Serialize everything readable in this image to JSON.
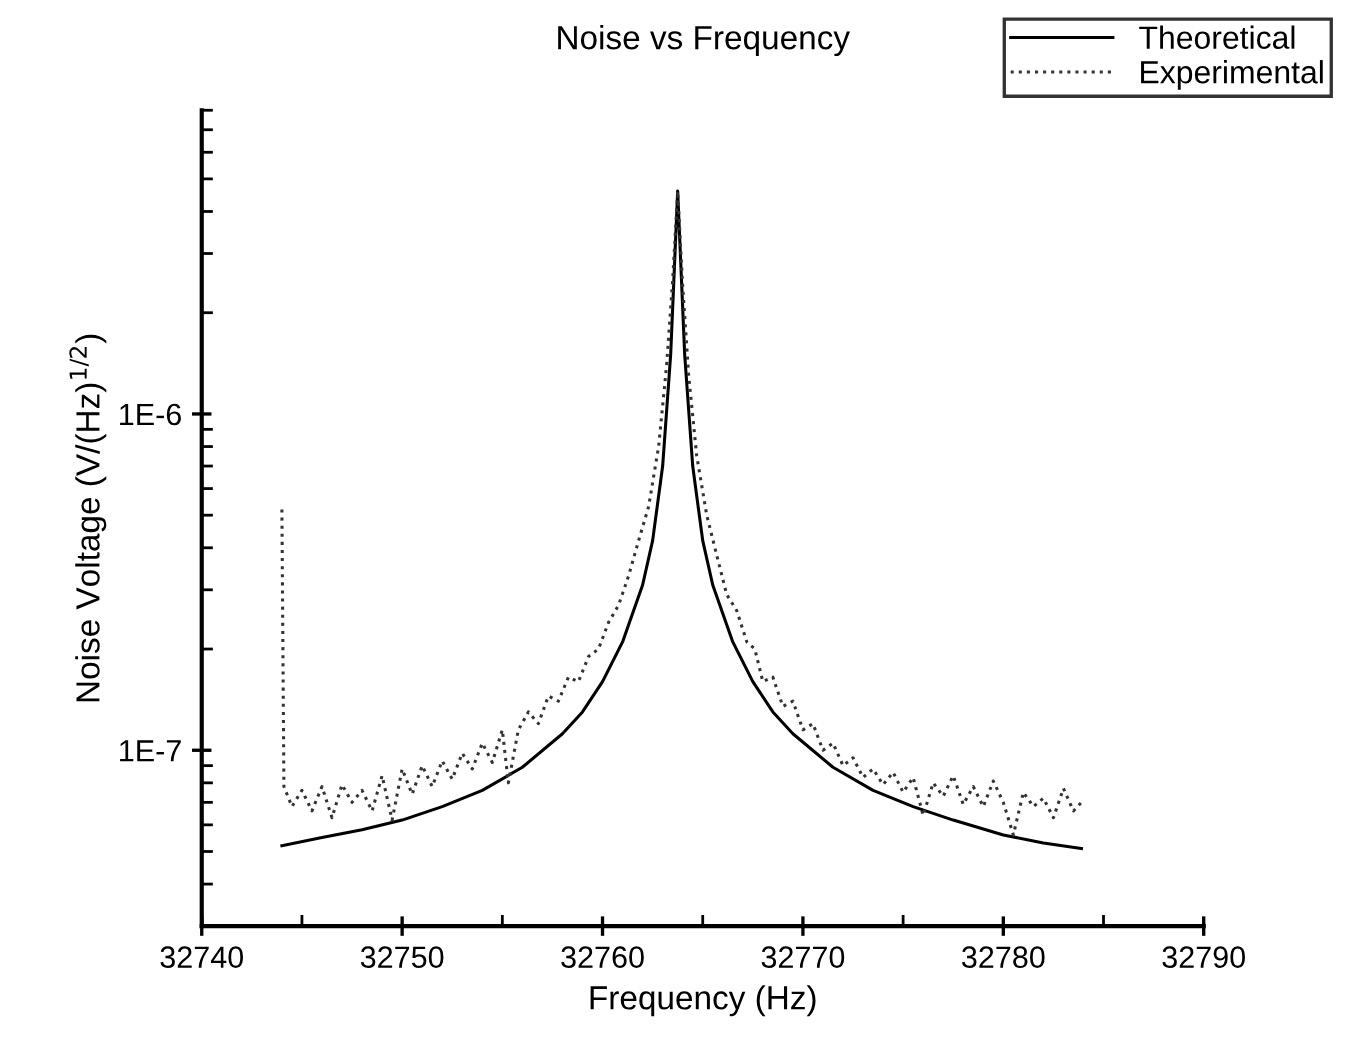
{
  "chart_data": {
    "type": "line",
    "title": "Noise vs Frequency",
    "xlabel": "Frequency (Hz)",
    "ylabel": "Noise Voltage (V/(Hz)$^{1/2}$)",
    "log": "y",
    "legend": "top right",
    "grid": false,
    "xlim": [
      32740,
      32790
    ],
    "xticks": [
      32740,
      32750,
      32760,
      32770,
      32780,
      32790
    ],
    "ylim": [
      3e-08,
      8e-06
    ],
    "yticks": [
      {
        "value": 1e-07,
        "label": "1E-7"
      },
      {
        "value": 1e-06,
        "label": "1E-6"
      }
    ],
    "series": [
      {
        "name": "Theoretical",
        "color": "#000000",
        "line_style": "solid",
        "x": [
          32744,
          32746,
          32748,
          32750,
          32752,
          32754,
          32756,
          32758,
          32759,
          32760,
          32761,
          32762,
          32762.5,
          32763,
          32763.4,
          32763.75,
          32764.1,
          32764.5,
          32765,
          32765.5,
          32766.5,
          32767.5,
          32768.5,
          32769.5,
          32771.5,
          32773.5,
          32775.5,
          32777.5,
          32780,
          32782,
          32783.9
        ],
        "values": [
          5.2e-08,
          5.5e-08,
          5.8e-08,
          6.2e-08,
          6.8e-08,
          7.6e-08,
          8.9e-08,
          1.12e-07,
          1.3e-07,
          1.6e-07,
          2.1e-07,
          3.1e-07,
          4.2e-07,
          7e-07,
          1.5e-06,
          4.6e-06,
          1.5e-06,
          7e-07,
          4.2e-07,
          3.1e-07,
          2.1e-07,
          1.6e-07,
          1.3e-07,
          1.12e-07,
          8.9e-08,
          7.6e-08,
          6.8e-08,
          6.2e-08,
          5.6e-08,
          5.3e-08,
          5.1e-08
        ]
      },
      {
        "name": "Experimental",
        "color": "#333333",
        "line_style": "dotted",
        "x": [
          32744.0,
          32744.1,
          32744.5,
          32745,
          32745.5,
          32746,
          32746.5,
          32747,
          32747.5,
          32748,
          32748.5,
          32749,
          32749.5,
          32750,
          32750.5,
          32751,
          32751.5,
          32752,
          32752.5,
          32753,
          32753.5,
          32754,
          32754.5,
          32755,
          32755.3,
          32755.8,
          32756.3,
          32756.8,
          32757.3,
          32757.8,
          32758.3,
          32758.8,
          32759.3,
          32759.8,
          32760.3,
          32760.8,
          32761.3,
          32761.8,
          32762.3,
          32762.8,
          32763.2,
          32763.5,
          32763.75,
          32764.0,
          32764.3,
          32764.7,
          32765.2,
          32765.7,
          32766.2,
          32766.7,
          32767.2,
          32767.6,
          32768.0,
          32768.5,
          32769,
          32769.5,
          32770,
          32770.5,
          32771,
          32771.5,
          32772,
          32772.5,
          32773,
          32773.5,
          32774,
          32774.5,
          32775,
          32775.5,
          32776,
          32776.5,
          32777,
          32777.5,
          32778,
          32778.5,
          32779,
          32779.5,
          32780,
          32780.5,
          32781,
          32781.5,
          32782,
          32782.5,
          32783,
          32783.5,
          32783.9
        ],
        "values": [
          5.2e-07,
          7.8e-08,
          6.8e-08,
          7.6e-08,
          6.6e-08,
          7.8e-08,
          6.3e-08,
          7.9e-08,
          7e-08,
          7.6e-08,
          6.6e-08,
          8.4e-08,
          6.2e-08,
          8.8e-08,
          7.4e-08,
          9e-08,
          7.8e-08,
          9.3e-08,
          8.2e-08,
          9.8e-08,
          8.8e-08,
          1.05e-07,
          9.2e-08,
          1.15e-07,
          8e-08,
          1.15e-07,
          1.3e-07,
          1.2e-07,
          1.45e-07,
          1.4e-07,
          1.65e-07,
          1.6e-07,
          1.9e-07,
          2e-07,
          2.4e-07,
          2.7e-07,
          3.3e-07,
          4.2e-07,
          5.3e-07,
          8e-07,
          1.4e-06,
          2.5e-06,
          4.6e-06,
          2.4e-06,
          1.3e-06,
          7.5e-07,
          5e-07,
          3.8e-07,
          2.9e-07,
          2.6e-07,
          2.1e-07,
          2e-07,
          1.6e-07,
          1.65e-07,
          1.35e-07,
          1.4e-07,
          1.15e-07,
          1.2e-07,
          1e-07,
          1.05e-07,
          9e-08,
          9.5e-08,
          8.3e-08,
          8.8e-08,
          7.9e-08,
          8.6e-08,
          7.5e-08,
          8.3e-08,
          6.4e-08,
          8e-08,
          7.3e-08,
          8.4e-08,
          6.9e-08,
          7.8e-08,
          6.8e-08,
          8.1e-08,
          7e-08,
          5.6e-08,
          7.5e-08,
          6.8e-08,
          7.2e-08,
          6.3e-08,
          7.7e-08,
          6.6e-08,
          7e-08
        ]
      }
    ]
  }
}
